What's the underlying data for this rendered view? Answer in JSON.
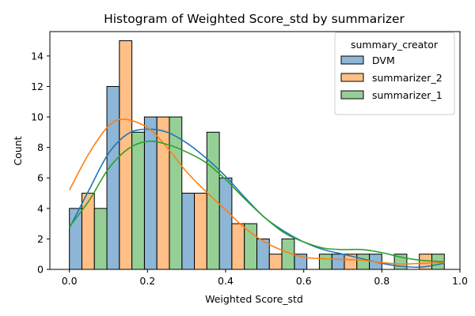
{
  "chart_data": {
    "type": "bar",
    "title": "Histogram of Weighted Score_std by summarizer",
    "xlabel": "Weighted Score_std",
    "ylabel": "Count",
    "xlim": [
      -0.05,
      1.0
    ],
    "ylim": [
      0,
      15.6
    ],
    "xticks": [
      "0.0",
      "0.2",
      "0.4",
      "0.6",
      "0.8",
      "1.0"
    ],
    "yticks": [
      "0",
      "2",
      "4",
      "6",
      "8",
      "10",
      "12",
      "14"
    ],
    "grid": false,
    "legend": {
      "title": "summary_creator",
      "placement": "top-right"
    },
    "bin_width": 0.096,
    "bin_starts": [
      0.0,
      0.096,
      0.192,
      0.288,
      0.384,
      0.48,
      0.576,
      0.672,
      0.768,
      0.864
    ],
    "series": [
      {
        "name": "DVM",
        "color": "#1f77b4",
        "fill": "#8db6d7",
        "values": [
          4,
          12,
          10,
          5,
          6,
          2,
          1,
          1,
          1,
          0
        ],
        "kde": [
          [
            0.0,
            2.7
          ],
          [
            0.05,
            5.2
          ],
          [
            0.1,
            7.6
          ],
          [
            0.15,
            8.9
          ],
          [
            0.2,
            9.2
          ],
          [
            0.25,
            9.0
          ],
          [
            0.3,
            8.3
          ],
          [
            0.35,
            7.3
          ],
          [
            0.4,
            6.1
          ],
          [
            0.45,
            4.7
          ],
          [
            0.5,
            3.4
          ],
          [
            0.55,
            2.5
          ],
          [
            0.6,
            1.8
          ],
          [
            0.65,
            1.3
          ],
          [
            0.7,
            1.0
          ],
          [
            0.75,
            0.7
          ],
          [
            0.8,
            0.4
          ],
          [
            0.85,
            0.2
          ],
          [
            0.9,
            0.15
          ],
          [
            0.96,
            0.4
          ]
        ]
      },
      {
        "name": "summarizer_2",
        "color": "#ff7f0e",
        "fill": "#ffbf86",
        "values": [
          5,
          15,
          10,
          5,
          3,
          1,
          0,
          1,
          0,
          1
        ],
        "kde": [
          [
            0.0,
            5.2
          ],
          [
            0.05,
            7.6
          ],
          [
            0.1,
            9.4
          ],
          [
            0.14,
            9.85
          ],
          [
            0.2,
            9.3
          ],
          [
            0.25,
            8.0
          ],
          [
            0.3,
            6.4
          ],
          [
            0.35,
            5.1
          ],
          [
            0.4,
            3.9
          ],
          [
            0.45,
            2.7
          ],
          [
            0.5,
            1.8
          ],
          [
            0.55,
            1.2
          ],
          [
            0.6,
            0.8
          ],
          [
            0.65,
            0.7
          ],
          [
            0.7,
            0.65
          ],
          [
            0.75,
            0.6
          ],
          [
            0.8,
            0.45
          ],
          [
            0.85,
            0.35
          ],
          [
            0.9,
            0.4
          ],
          [
            0.96,
            0.45
          ]
        ]
      },
      {
        "name": "summarizer_1",
        "color": "#2ca02c",
        "fill": "#96cf96",
        "values": [
          4,
          9,
          10,
          9,
          3,
          2,
          1,
          1,
          1,
          1
        ],
        "kde": [
          [
            0.0,
            2.8
          ],
          [
            0.05,
            4.5
          ],
          [
            0.1,
            6.6
          ],
          [
            0.15,
            7.9
          ],
          [
            0.2,
            8.4
          ],
          [
            0.25,
            8.2
          ],
          [
            0.3,
            7.7
          ],
          [
            0.35,
            7.0
          ],
          [
            0.4,
            5.9
          ],
          [
            0.45,
            4.6
          ],
          [
            0.5,
            3.4
          ],
          [
            0.55,
            2.4
          ],
          [
            0.6,
            1.8
          ],
          [
            0.65,
            1.4
          ],
          [
            0.7,
            1.3
          ],
          [
            0.75,
            1.3
          ],
          [
            0.8,
            1.1
          ],
          [
            0.85,
            0.8
          ],
          [
            0.9,
            0.6
          ],
          [
            0.96,
            0.5
          ]
        ]
      }
    ]
  }
}
